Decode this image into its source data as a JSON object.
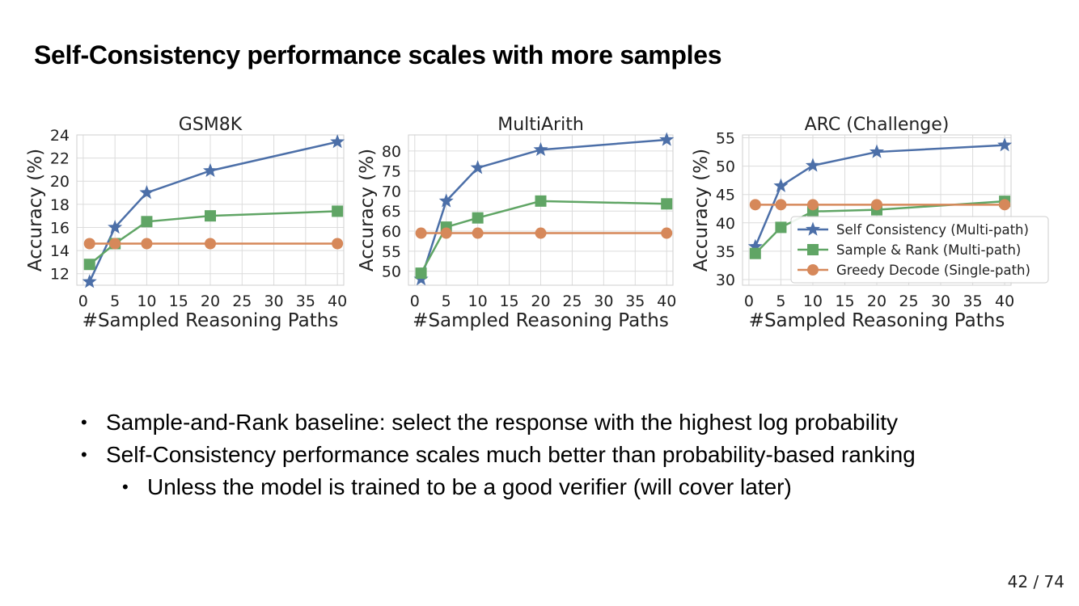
{
  "slide": {
    "title": "Self-Consistency performance scales with more samples",
    "bullets": [
      {
        "text": "Sample-and-Rank baseline: select the response with the highest log probability",
        "level": 1
      },
      {
        "text": "Self-Consistency performance scales much better than probability-based ranking",
        "level": 1
      },
      {
        "text": "Unless the model is trained to be a good verifier (will cover later)",
        "level": 2
      }
    ],
    "page_number": "42 / 74"
  },
  "chart_data": [
    {
      "type": "line",
      "title": "GSM8K",
      "xlabel": "#Sampled Reasoning Paths",
      "ylabel": "Accuracy (%)",
      "xlim": [
        -1,
        41
      ],
      "ylim": [
        11,
        24
      ],
      "xticks": [
        0,
        5,
        10,
        15,
        20,
        25,
        30,
        35,
        40
      ],
      "yticks": [
        12,
        14,
        16,
        18,
        20,
        22,
        24
      ],
      "grid": true,
      "x": [
        1,
        5,
        10,
        20,
        40
      ],
      "series": [
        {
          "name": "Self Consistency (Multi-path)",
          "color": "#4c6fa8",
          "marker": "star",
          "values": [
            11.3,
            16.0,
            19.0,
            20.9,
            23.4
          ]
        },
        {
          "name": "Sample & Rank (Multi-path)",
          "color": "#60a565",
          "marker": "square",
          "values": [
            12.8,
            14.6,
            16.5,
            17.0,
            17.4
          ]
        },
        {
          "name": "Greedy Decode (Single-path)",
          "color": "#d6885a",
          "marker": "circle",
          "values": [
            14.6,
            14.6,
            14.6,
            14.6,
            14.6
          ]
        }
      ]
    },
    {
      "type": "line",
      "title": "MultiArith",
      "xlabel": "#Sampled Reasoning Paths",
      "ylabel": "Accuracy (%)",
      "xlim": [
        -1,
        41
      ],
      "ylim": [
        46.5,
        84
      ],
      "xticks": [
        0,
        5,
        10,
        15,
        20,
        25,
        30,
        35,
        40
      ],
      "yticks": [
        50,
        55,
        60,
        65,
        70,
        75,
        80
      ],
      "grid": true,
      "x": [
        1,
        5,
        10,
        20,
        40
      ],
      "series": [
        {
          "name": "Self Consistency (Multi-path)",
          "color": "#4c6fa8",
          "marker": "star",
          "values": [
            48.0,
            67.5,
            75.8,
            80.3,
            82.8
          ]
        },
        {
          "name": "Sample & Rank (Multi-path)",
          "color": "#60a565",
          "marker": "square",
          "values": [
            49.5,
            61.0,
            63.3,
            67.5,
            66.8
          ]
        },
        {
          "name": "Greedy Decode (Single-path)",
          "color": "#d6885a",
          "marker": "circle",
          "values": [
            59.5,
            59.5,
            59.5,
            59.5,
            59.5
          ]
        }
      ]
    },
    {
      "type": "line",
      "title": "ARC (Challenge)",
      "xlabel": "#Sampled Reasoning Paths",
      "ylabel": "Accuracy (%)",
      "xlim": [
        -1,
        41
      ],
      "ylim": [
        29,
        55.5
      ],
      "xticks": [
        0,
        5,
        10,
        15,
        20,
        25,
        30,
        35,
        40
      ],
      "yticks": [
        30,
        35,
        40,
        45,
        50,
        55
      ],
      "grid": true,
      "legend": "lower-right",
      "x": [
        1,
        5,
        10,
        20,
        40
      ],
      "series": [
        {
          "name": "Self Consistency (Multi-path)",
          "color": "#4c6fa8",
          "marker": "star",
          "values": [
            35.8,
            46.5,
            50.1,
            52.5,
            53.7
          ]
        },
        {
          "name": "Sample & Rank (Multi-path)",
          "color": "#60a565",
          "marker": "square",
          "values": [
            34.6,
            39.2,
            42.0,
            42.3,
            43.8
          ]
        },
        {
          "name": "Greedy Decode (Single-path)",
          "color": "#d6885a",
          "marker": "circle",
          "values": [
            43.2,
            43.2,
            43.2,
            43.2,
            43.2
          ]
        }
      ]
    }
  ]
}
